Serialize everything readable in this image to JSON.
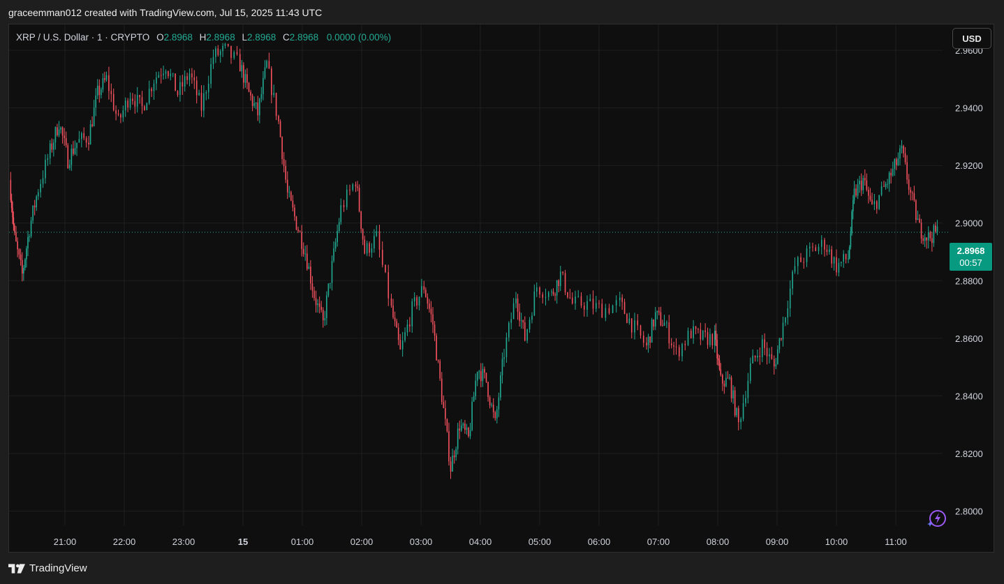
{
  "header": {
    "credit": "graceemman012 created with TradingView.com, Jul 15, 2025 11:43 UTC"
  },
  "legend": {
    "symbol": "XRP / U.S. Dollar · 1 · CRYPTO",
    "o_label": "O",
    "o_value": "2.8968",
    "h_label": "H",
    "h_value": "2.8968",
    "l_label": "L",
    "l_value": "2.8968",
    "c_label": "C",
    "c_value": "2.8968",
    "change": "0.0000 (0.00%)"
  },
  "currency_button": "USD",
  "price_tag": {
    "price": "2.8968",
    "timer": "00:57"
  },
  "footer": {
    "brand": "TradingView"
  },
  "colors": {
    "up": "#22ab94",
    "down": "#f7525f",
    "background": "#0f0f0f",
    "grid": "#1f1f1f",
    "price_tag": "#089981"
  },
  "chart_data": {
    "type": "candlestick",
    "timeframe": "1 minute",
    "ylim": [
      2.795,
      2.969
    ],
    "y_ticks": [
      "2.9600",
      "2.9400",
      "2.9200",
      "2.9000",
      "2.8800",
      "2.8600",
      "2.8400",
      "2.8200",
      "2.8000"
    ],
    "y_tick_values": [
      2.96,
      2.94,
      2.92,
      2.9,
      2.88,
      2.86,
      2.84,
      2.82,
      2.8
    ],
    "x_ticks": [
      "21:00",
      "22:00",
      "23:00",
      "15",
      "01:00",
      "02:00",
      "03:00",
      "04:00",
      "05:00",
      "06:00",
      "07:00",
      "08:00",
      "09:00",
      "10:00",
      "11:00"
    ],
    "x_tick_hours": [
      0,
      1,
      2,
      3,
      4,
      5,
      6,
      7,
      8,
      9,
      10,
      11,
      12,
      13,
      14
    ],
    "x_start_hours": -0.93,
    "x_end_hours": 15.36,
    "last_price": 2.8968,
    "candles_per_point": 5,
    "close_path": [
      [
        -0.93,
        2.915
      ],
      [
        -0.85,
        2.895
      ],
      [
        -0.72,
        2.882
      ],
      [
        -0.6,
        2.898
      ],
      [
        -0.45,
        2.912
      ],
      [
        -0.25,
        2.925
      ],
      [
        -0.1,
        2.935
      ],
      [
        0.05,
        2.922
      ],
      [
        0.2,
        2.928
      ],
      [
        0.4,
        2.93
      ],
      [
        0.55,
        2.945
      ],
      [
        0.7,
        2.95
      ],
      [
        0.9,
        2.935
      ],
      [
        1.1,
        2.945
      ],
      [
        1.3,
        2.94
      ],
      [
        1.5,
        2.95
      ],
      [
        1.7,
        2.955
      ],
      [
        1.9,
        2.945
      ],
      [
        2.1,
        2.952
      ],
      [
        2.3,
        2.94
      ],
      [
        2.5,
        2.958
      ],
      [
        2.7,
        2.96
      ],
      [
        2.95,
        2.955
      ],
      [
        3.1,
        2.945
      ],
      [
        3.25,
        2.938
      ],
      [
        3.4,
        2.955
      ],
      [
        3.6,
        2.935
      ],
      [
        3.75,
        2.91
      ],
      [
        3.9,
        2.9
      ],
      [
        4.05,
        2.89
      ],
      [
        4.2,
        2.875
      ],
      [
        4.35,
        2.865
      ],
      [
        4.5,
        2.885
      ],
      [
        4.65,
        2.905
      ],
      [
        4.9,
        2.915
      ],
      [
        5.05,
        2.89
      ],
      [
        5.25,
        2.895
      ],
      [
        5.5,
        2.87
      ],
      [
        5.65,
        2.855
      ],
      [
        5.85,
        2.87
      ],
      [
        6.05,
        2.878
      ],
      [
        6.2,
        2.865
      ],
      [
        6.35,
        2.84
      ],
      [
        6.5,
        2.815
      ],
      [
        6.65,
        2.83
      ],
      [
        6.8,
        2.825
      ],
      [
        6.95,
        2.85
      ],
      [
        7.1,
        2.845
      ],
      [
        7.25,
        2.83
      ],
      [
        7.4,
        2.855
      ],
      [
        7.6,
        2.875
      ],
      [
        7.75,
        2.86
      ],
      [
        7.95,
        2.878
      ],
      [
        8.2,
        2.875
      ],
      [
        8.35,
        2.882
      ],
      [
        8.55,
        2.872
      ],
      [
        8.8,
        2.872
      ],
      [
        9.05,
        2.87
      ],
      [
        9.35,
        2.872
      ],
      [
        9.55,
        2.865
      ],
      [
        9.8,
        2.857
      ],
      [
        9.95,
        2.868
      ],
      [
        10.1,
        2.865
      ],
      [
        10.3,
        2.855
      ],
      [
        10.55,
        2.862
      ],
      [
        10.75,
        2.86
      ],
      [
        10.95,
        2.86
      ],
      [
        11.05,
        2.845
      ],
      [
        11.2,
        2.845
      ],
      [
        11.35,
        2.83
      ],
      [
        11.55,
        2.85
      ],
      [
        11.75,
        2.858
      ],
      [
        11.95,
        2.85
      ],
      [
        12.1,
        2.865
      ],
      [
        12.3,
        2.885
      ],
      [
        12.55,
        2.89
      ],
      [
        12.8,
        2.893
      ],
      [
        13.0,
        2.885
      ],
      [
        13.2,
        2.888
      ],
      [
        13.3,
        2.91
      ],
      [
        13.45,
        2.915
      ],
      [
        13.6,
        2.905
      ],
      [
        13.8,
        2.912
      ],
      [
        13.95,
        2.918
      ],
      [
        14.1,
        2.925
      ],
      [
        14.25,
        2.91
      ],
      [
        14.4,
        2.898
      ],
      [
        14.55,
        2.895
      ],
      [
        14.7,
        2.897
      ]
    ]
  }
}
